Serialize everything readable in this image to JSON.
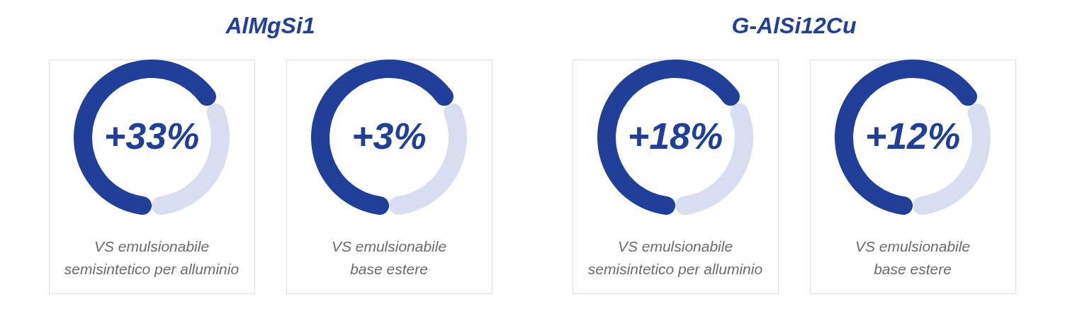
{
  "chart_data": [
    {
      "type": "donut",
      "title": "AlMgSi1",
      "categories": [
        null,
        null
      ],
      "values": [
        67,
        33
      ],
      "colors": [
        "#1f3f99",
        "#d8deef"
      ],
      "annotations": [
        "+33%",
        "VS emulsionabile",
        "semisintetico per alluminio"
      ]
    },
    {
      "type": "donut",
      "categories": [
        null,
        null
      ],
      "values": [
        67,
        33
      ],
      "colors": [
        "#1f3f99",
        "#d8deef"
      ],
      "annotations": [
        "+3%",
        "VS emulsionabile",
        "base estere"
      ]
    },
    {
      "type": "donut",
      "title": "G-AlSi12Cu",
      "categories": [
        null,
        null
      ],
      "values": [
        67,
        33
      ],
      "colors": [
        "#1f3f99",
        "#d8deef"
      ],
      "annotations": [
        "+18%",
        "VS emulsionabile",
        "semisintetico per alluminio"
      ]
    },
    {
      "type": "donut",
      "categories": [
        null,
        null
      ],
      "values": [
        67,
        33
      ],
      "colors": [
        "#1f3f99",
        "#d8deef"
      ],
      "annotations": [
        "+12%",
        "VS emulsionabile",
        "base estere"
      ]
    }
  ]
}
